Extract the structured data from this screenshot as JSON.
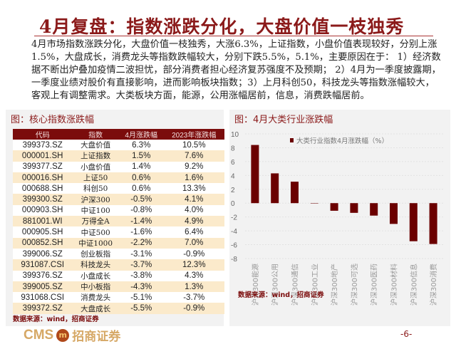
{
  "title": "4月复盘：指数涨跌分化，大盘价值一枝独秀",
  "paragraph": "4月市场指数涨跌分化，大盘价值一枝独秀，大涨6.3%，上证指数，小盘价值表现较好，分别上涨1.5%，大盘成长，消费龙头等指数跌幅较大，分别下跌5.5%，5.1%，主要原因在于： 1）经济数据不断出炉叠加疫情二波担忧，部分消费者担心经济复苏强度不及预期； 2）4月为一季度披露期，一季度业绩对股价有直接影响，进而影响板块指数；3）上月科创50，科技龙头等指数涨幅较大，客观上有调整需求。大类板块方面，能源，公用涨幅居前，信息，消费跌幅居前。",
  "left_panel": {
    "title": "图：核心指数涨跌幅",
    "headers": [
      "代码",
      "指数",
      "4月涨跌幅",
      "2023年涨跌幅"
    ],
    "rows": [
      [
        "399373.SZ",
        "大盘价值",
        "6.3%",
        "10.5%"
      ],
      [
        "000001.SH",
        "上证指数",
        "1.5%",
        "7.6%"
      ],
      [
        "399377.SZ",
        "小盘价值",
        "1.4%",
        "9.2%"
      ],
      [
        "000016.SH",
        "上证50",
        "0.6%",
        "1.6%"
      ],
      [
        "000688.SH",
        "科创50",
        "0.6%",
        "13.3%"
      ],
      [
        "399300.SZ",
        "沪深300",
        "-0.5%",
        "4.1%"
      ],
      [
        "000903.SH",
        "中证100",
        "-0.8%",
        "4.0%"
      ],
      [
        "881001.WI",
        "万得全A",
        "-1.4%",
        "4.9%"
      ],
      [
        "000905.SH",
        "中证500",
        "-1.6%",
        "6.4%"
      ],
      [
        "000852.SH",
        "中证1000",
        "-2.2%",
        "7.0%"
      ],
      [
        "399006.SZ",
        "创业板指",
        "-3.1%",
        "-0.9%"
      ],
      [
        "931087.CSI",
        "科技龙头",
        "-3.7%",
        "12.3%"
      ],
      [
        "399376.SZ",
        "小盘成长",
        "-3.8%",
        "4.3%"
      ],
      [
        "399005.SZ",
        "中小板指",
        "-4.3%",
        "1.3%"
      ],
      [
        "931068.CSI",
        "消费龙头",
        "-5.1%",
        "-3.7%"
      ],
      [
        "399372.SZ",
        "大盘成长",
        "-5.5%",
        "-0.9%"
      ]
    ],
    "source": "数据来源：wind，招商证券"
  },
  "right_panel": {
    "title": "图：4月大类行业涨跌幅",
    "source": "数据来源：wind，招商证券"
  },
  "chart_data": {
    "type": "bar",
    "categories": [
      "沪深300能源",
      "沪深300公用",
      "沪深300通信",
      "沪深300工业",
      "沪深300地产",
      "沪深300可选",
      "沪深300医药",
      "沪深300材料",
      "沪深300信息",
      "沪深300消费"
    ],
    "series": [
      {
        "name": "大类行业指数4月涨跌幅（%）",
        "values": [
          8.4,
          4.3,
          3.1,
          0.0,
          -1.1,
          -1.4,
          -1.8,
          -3.0,
          -5.5,
          -5.9
        ]
      }
    ],
    "ylim": [
      -8,
      10
    ],
    "yticks": [
      10,
      8,
      6,
      4,
      2,
      0,
      -2,
      -4,
      -6,
      -8
    ],
    "grid": true,
    "legend": "top",
    "color": "#6b0000"
  },
  "footer": {
    "logo_en": "CMS",
    "logo_mark": "m",
    "logo_cn": "招商证券",
    "page": "-6-"
  }
}
